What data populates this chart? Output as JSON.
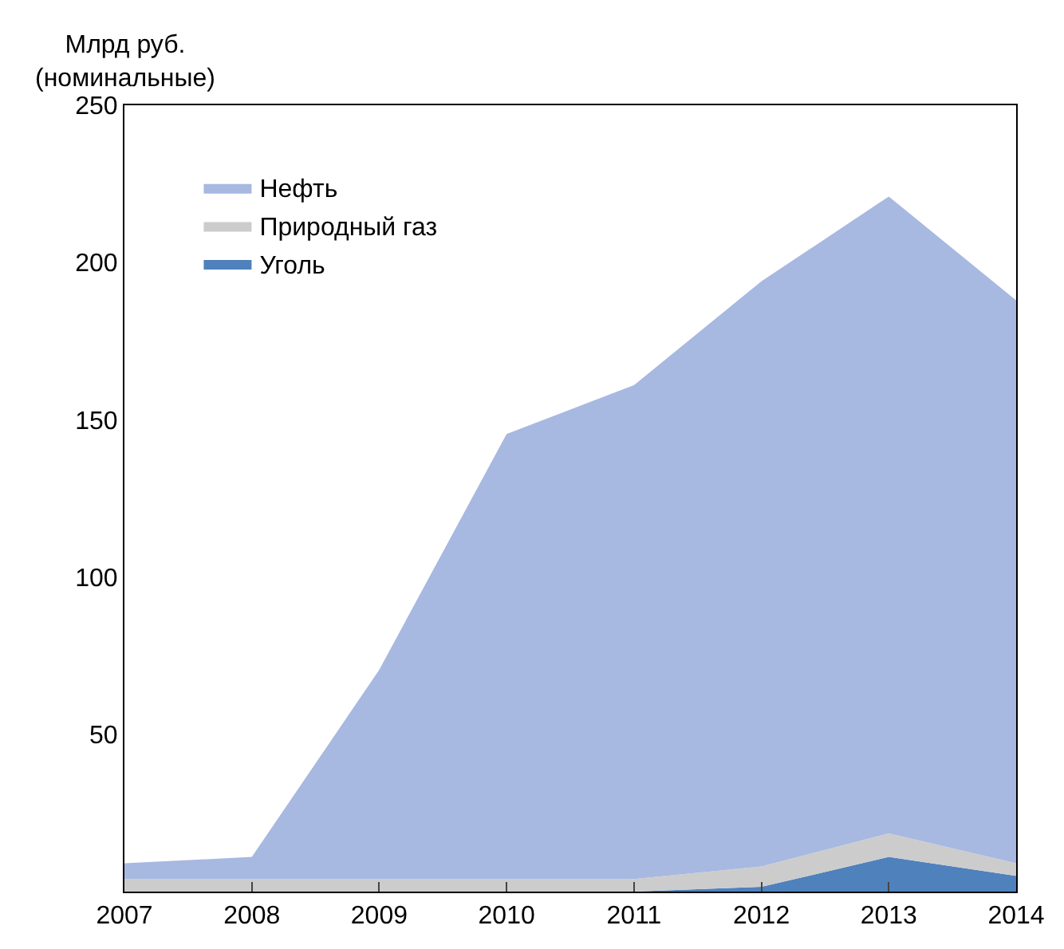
{
  "chart_data": {
    "type": "area",
    "stacked": true,
    "ylabel": "Млрд руб.\n(номинальные)",
    "x": [
      2007,
      2008,
      2009,
      2010,
      2011,
      2012,
      2013,
      2014
    ],
    "series": [
      {
        "name": "Уголь",
        "color": "#4f81bd",
        "values": [
          0,
          0,
          0,
          0,
          0,
          1.5,
          11,
          5
        ]
      },
      {
        "name": "Природный газ",
        "color": "#cccccc",
        "values": [
          4,
          4,
          4,
          4,
          4,
          6.5,
          7.5,
          4
        ]
      },
      {
        "name": "Нефть",
        "color": "#a7b8e1",
        "values": [
          5,
          7,
          66.5,
          141.5,
          157,
          186,
          202.5,
          179
        ]
      }
    ],
    "xlim": [
      2007,
      2014
    ],
    "xticks": [
      2007,
      2008,
      2009,
      2010,
      2011,
      2012,
      2013,
      2014
    ],
    "ylim": [
      0,
      250
    ],
    "yticks": [
      50,
      100,
      150,
      200,
      250
    ],
    "legend": "top left"
  }
}
